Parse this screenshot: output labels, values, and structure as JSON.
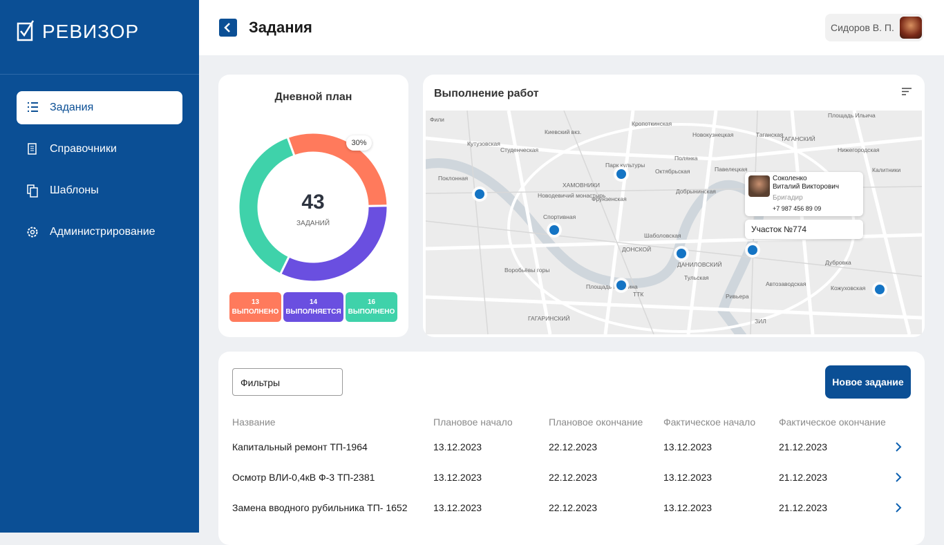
{
  "sidebar": {
    "logo": "РЕВИЗОР",
    "nav": [
      "Задания",
      "Справочники",
      "Шаблоны",
      "Администрирование"
    ]
  },
  "header": {
    "title": "Задания",
    "user": "Сидоров В. П."
  },
  "daily_plan": {
    "title": "Дневной план",
    "total": 43,
    "total_label": "ЗАДАНИЙ",
    "callout": "30%",
    "segments": [
      {
        "value": 13,
        "label": "ВЫПОЛНЕНО",
        "color": "#ff7a5c"
      },
      {
        "value": 14,
        "label": "ВЫПОЛНЯЕТСЯ",
        "color": "#6a4fe0"
      },
      {
        "value": 16,
        "label": "ВЫПОЛНЕНО",
        "color": "#3fd2aa"
      }
    ]
  },
  "map": {
    "title": "Выполнение работ",
    "labels": [
      "Фили",
      "Кутузовская",
      "Киевский вкз.",
      "Студенческая",
      "Кропоткинская",
      "Новокузнецкая",
      "Таганская",
      "Площадь Ильича",
      "Поклонная",
      "Парк культуры",
      "Октябрьская",
      "Полянка",
      "Павелецкая",
      "ХАМОВНИКИ",
      "Новодевичий монастырь",
      "Фрунзенская",
      "Спортивная",
      "Добрынинская",
      "Шаболовская",
      "ДОНСКОЙ",
      "ДАНИЛОВСКИЙ",
      "Тульская",
      "Воробьёвы горы",
      "Площадь Гагарина",
      "Автозаводская",
      "Кожуховская",
      "Дубровка",
      "ГАГАРИНСКИЙ",
      "ЗИЛ",
      "Ривьера",
      "ТАГАНСКИЙ",
      "Нижегородская",
      "Калитники",
      "ТТК"
    ],
    "popup": {
      "name": [
        "Соколенко",
        "Виталий Викторович"
      ],
      "role": "Бригадир",
      "phone": "+7 987 456 89 09",
      "section": "Участок №774"
    }
  },
  "table": {
    "filter": "Фильтры",
    "new_button": "Новое задание",
    "columns": [
      "Название",
      "Плановое начало",
      "Плановое окончание",
      "Фактическое начало",
      "Фактическое окончание"
    ],
    "rows": [
      [
        "Капитальный ремонт ТП-1964",
        "13.12.2023",
        "22.12.2023",
        "13.12.2023",
        "21.12.2023"
      ],
      [
        "Осмотр ВЛИ-0,4кВ Ф-3 ТП-2381",
        "13.12.2023",
        "22.12.2023",
        "13.12.2023",
        "21.12.2023"
      ],
      [
        "Замена вводного рубильника ТП- 1652",
        "13.12.2023",
        "22.12.2023",
        "13.12.2023",
        "21.12.2023"
      ]
    ]
  }
}
